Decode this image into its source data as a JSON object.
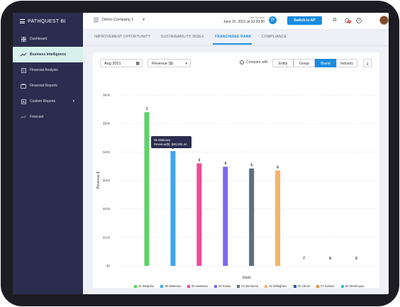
{
  "app": {
    "brand": "PATHQUEST BI"
  },
  "sidebar": {
    "items": [
      {
        "label": "Dashboard",
        "icon": "dashboard-icon",
        "active": false
      },
      {
        "label": "Business Intelligence",
        "icon": "trend-icon",
        "active": true
      },
      {
        "label": "Financial Analysis",
        "icon": "document-icon",
        "active": false
      },
      {
        "label": "Financial Reports",
        "icon": "briefcase-icon",
        "active": false
      },
      {
        "label": "Custom Reports",
        "icon": "report-icon",
        "active": false
      },
      {
        "label": "Forecast",
        "icon": "forecast-icon",
        "active": false
      }
    ]
  },
  "topbar": {
    "company": "Demo Company 1",
    "last_synced_label": "Last Synced",
    "last_synced_value": "June 15, 2021 at 10:20:30",
    "switch_label": "Switch to AP",
    "notification_count": "2"
  },
  "tabs": [
    {
      "label": "IMPROVEMENT OPPORTUNITY",
      "active": false
    },
    {
      "label": "SUSTAINABILITY INDEX",
      "active": false
    },
    {
      "label": "FRANCHISEE RANK",
      "active": true
    },
    {
      "label": "COMPLIANCE",
      "active": false
    }
  ],
  "controls": {
    "date": "Aug 2021",
    "metric": "Revenue ($)",
    "compare_label": "Compare with",
    "segments": [
      {
        "label": "Entity",
        "active": false
      },
      {
        "label": "Group",
        "active": false
      },
      {
        "label": "Brand",
        "active": true
      },
      {
        "label": "Industry",
        "active": false
      }
    ]
  },
  "tooltip": {
    "line1": "06 Waikowa",
    "line2": "Revenue($): $40,302.44"
  },
  "colors": {
    "accent": "#1a8cdf",
    "sidebar": "#2b2d4e",
    "active_nav": "#d6f1ea"
  },
  "chart_data": {
    "type": "bar",
    "xlabel": "Rank",
    "ylabel": "Revenue $",
    "ylim": [
      0,
      60000
    ],
    "yticks": [
      "$0",
      "$10k",
      "$20k",
      "$30k",
      "$40k",
      "$50k",
      "$60k"
    ],
    "grid": true,
    "legend_position": "bottom",
    "categories": [
      "1",
      "2",
      "3",
      "4",
      "5",
      "6",
      "7",
      "8",
      "9"
    ],
    "series": [
      {
        "name": "02 Waipahu",
        "rank": "1",
        "value": 54000,
        "color": "#5ed16a"
      },
      {
        "name": "06 Waikowa",
        "rank": "2",
        "value": 40302.44,
        "color": "#3fa4f0"
      },
      {
        "name": "05 Newtown",
        "rank": "3",
        "value": 36000,
        "color": "#ee4b9b"
      },
      {
        "name": "04 Kailua",
        "rank": "4",
        "value": 34800,
        "color": "#7b68ee"
      },
      {
        "name": "01 Beretania",
        "rank": "5",
        "value": 34200,
        "color": "#5f6f7c"
      },
      {
        "name": "02 Dillingham",
        "rank": "6",
        "value": 33500,
        "color": "#f5b36b"
      },
      {
        "name": "00 Admin",
        "rank": "7",
        "value": 0,
        "color": "#1e5aa8"
      },
      {
        "name": "07 Kailruin",
        "rank": "8",
        "value": 0,
        "color": "#f08a3c"
      },
      {
        "name": "09 Wershouse",
        "rank": "9",
        "value": 0,
        "color": "#33c9dc"
      }
    ]
  }
}
